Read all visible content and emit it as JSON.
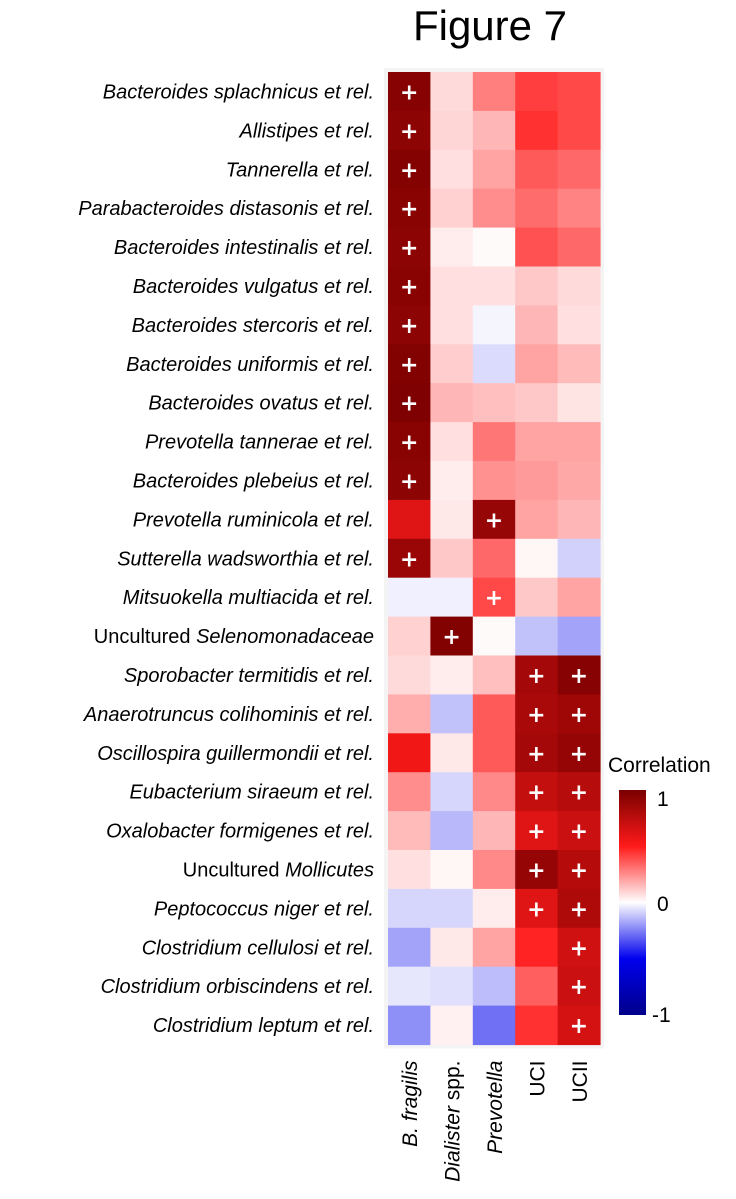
{
  "chart_data": {
    "type": "heatmap",
    "title": "Figure 7",
    "columns": [
      {
        "text": "B. fragilis",
        "italic_parts": [
          "B. fragilis"
        ]
      },
      {
        "text": "Dialister spp.",
        "italic_parts": [
          "Dialister"
        ]
      },
      {
        "text": "Prevotella",
        "italic_parts": [
          "Prevotella"
        ]
      },
      {
        "text": "UCI",
        "italic_parts": []
      },
      {
        "text": "UCII",
        "italic_parts": []
      }
    ],
    "rows": [
      {
        "text": "Bacteroides splachnicus et rel.",
        "italic": true
      },
      {
        "text": "Allistipes et rel.",
        "italic": true
      },
      {
        "text": "Tannerella et rel.",
        "italic": true
      },
      {
        "text": "Parabacteroides distasonis et rel.",
        "italic": true
      },
      {
        "text": "Bacteroides intestinalis et rel.",
        "italic": true
      },
      {
        "text": "Bacteroides vulgatus et rel.",
        "italic": true
      },
      {
        "text": "Bacteroides stercoris et rel.",
        "italic": true
      },
      {
        "text": "Bacteroides uniformis et rel.",
        "italic": true
      },
      {
        "text": "Bacteroides ovatus et rel.",
        "italic": true
      },
      {
        "text": "Prevotella tannerae et rel.",
        "italic": true
      },
      {
        "text": "Bacteroides plebeius et rel.",
        "italic": true
      },
      {
        "text": "Prevotella ruminicola et rel.",
        "italic": true
      },
      {
        "text": "Sutterella wadsworthia et rel.",
        "italic": true
      },
      {
        "text": "Mitsuokella multiacida et rel.",
        "italic": true
      },
      {
        "text": "Uncultured Selenomonadaceae",
        "prefix": "Uncultured ",
        "italic_part": "Selenomonadaceae"
      },
      {
        "text": "Sporobacter termitidis et rel.",
        "italic": true
      },
      {
        "text": "Anaerotruncus colihominis et rel.",
        "italic": true
      },
      {
        "text": "Oscillospira guillermondii et rel.",
        "italic": true
      },
      {
        "text": "Eubacterium siraeum et rel.",
        "italic": true
      },
      {
        "text": "Oxalobacter formigenes et rel.",
        "italic": true
      },
      {
        "text": "Uncultured Mollicutes",
        "prefix": "Uncultured ",
        "italic_part": "Mollicutes"
      },
      {
        "text": "Peptococcus niger et rel.",
        "italic": true
      },
      {
        "text": "Clostridium cellulosi et rel.",
        "italic": true
      },
      {
        "text": "Clostridium orbiscindens et rel.",
        "italic": true
      },
      {
        "text": "Clostridium leptum et rel.",
        "italic": true
      }
    ],
    "values": [
      [
        0.95,
        0.08,
        0.28,
        0.42,
        0.4
      ],
      [
        0.93,
        0.09,
        0.16,
        0.45,
        0.4
      ],
      [
        0.96,
        0.07,
        0.2,
        0.36,
        0.33
      ],
      [
        0.94,
        0.1,
        0.25,
        0.32,
        0.27
      ],
      [
        0.93,
        0.04,
        0.01,
        0.38,
        0.33
      ],
      [
        0.94,
        0.07,
        0.07,
        0.12,
        0.08
      ],
      [
        0.93,
        0.07,
        -0.02,
        0.16,
        0.07
      ],
      [
        0.97,
        0.11,
        -0.07,
        0.2,
        0.15
      ],
      [
        0.98,
        0.16,
        0.14,
        0.12,
        0.06
      ],
      [
        0.94,
        0.07,
        0.3,
        0.2,
        0.2
      ],
      [
        0.93,
        0.04,
        0.24,
        0.22,
        0.19
      ],
      [
        0.62,
        0.05,
        0.89,
        0.2,
        0.16
      ],
      [
        0.88,
        0.12,
        0.33,
        0.02,
        -0.09
      ],
      [
        -0.03,
        -0.03,
        0.4,
        0.12,
        0.2
      ],
      [
        0.1,
        0.97,
        0.01,
        -0.12,
        -0.18
      ],
      [
        0.08,
        0.04,
        0.14,
        0.84,
        0.95
      ],
      [
        0.18,
        -0.12,
        0.36,
        0.82,
        0.86
      ],
      [
        0.55,
        0.05,
        0.36,
        0.84,
        0.9
      ],
      [
        0.25,
        -0.08,
        0.26,
        0.72,
        0.77
      ],
      [
        0.15,
        -0.14,
        0.16,
        0.62,
        0.7
      ],
      [
        0.07,
        0.02,
        0.26,
        0.9,
        0.78
      ],
      [
        -0.08,
        -0.08,
        0.04,
        0.62,
        0.8
      ],
      [
        -0.18,
        0.05,
        0.2,
        0.48,
        0.68
      ],
      [
        -0.05,
        -0.06,
        -0.13,
        0.35,
        0.7
      ],
      [
        -0.22,
        0.03,
        -0.28,
        0.45,
        0.66
      ]
    ],
    "significant_marker": "+",
    "significant": [
      [
        1,
        0,
        0,
        0,
        0
      ],
      [
        1,
        0,
        0,
        0,
        0
      ],
      [
        1,
        0,
        0,
        0,
        0
      ],
      [
        1,
        0,
        0,
        0,
        0
      ],
      [
        1,
        0,
        0,
        0,
        0
      ],
      [
        1,
        0,
        0,
        0,
        0
      ],
      [
        1,
        0,
        0,
        0,
        0
      ],
      [
        1,
        0,
        0,
        0,
        0
      ],
      [
        1,
        0,
        0,
        0,
        0
      ],
      [
        1,
        0,
        0,
        0,
        0
      ],
      [
        1,
        0,
        0,
        0,
        0
      ],
      [
        0,
        0,
        1,
        0,
        0
      ],
      [
        1,
        0,
        0,
        0,
        0
      ],
      [
        0,
        0,
        1,
        0,
        0
      ],
      [
        0,
        1,
        0,
        0,
        0
      ],
      [
        0,
        0,
        0,
        1,
        1
      ],
      [
        0,
        0,
        0,
        1,
        1
      ],
      [
        0,
        0,
        0,
        1,
        1
      ],
      [
        0,
        0,
        0,
        1,
        1
      ],
      [
        0,
        0,
        0,
        1,
        1
      ],
      [
        0,
        0,
        0,
        1,
        1
      ],
      [
        0,
        0,
        0,
        1,
        1
      ],
      [
        0,
        0,
        0,
        0,
        1
      ],
      [
        0,
        0,
        0,
        0,
        1
      ],
      [
        0,
        0,
        0,
        0,
        1
      ]
    ],
    "legend": {
      "title": "Correlation",
      "ticks": [
        "1",
        "0",
        "-1"
      ],
      "range": [
        -1,
        1
      ],
      "colors": {
        "high": "#7a0000",
        "mid_high": "#ff1a1a",
        "zero": "#ffffff",
        "mid_low": "#0000ee",
        "low": "#00008b"
      }
    },
    "grid": false
  }
}
